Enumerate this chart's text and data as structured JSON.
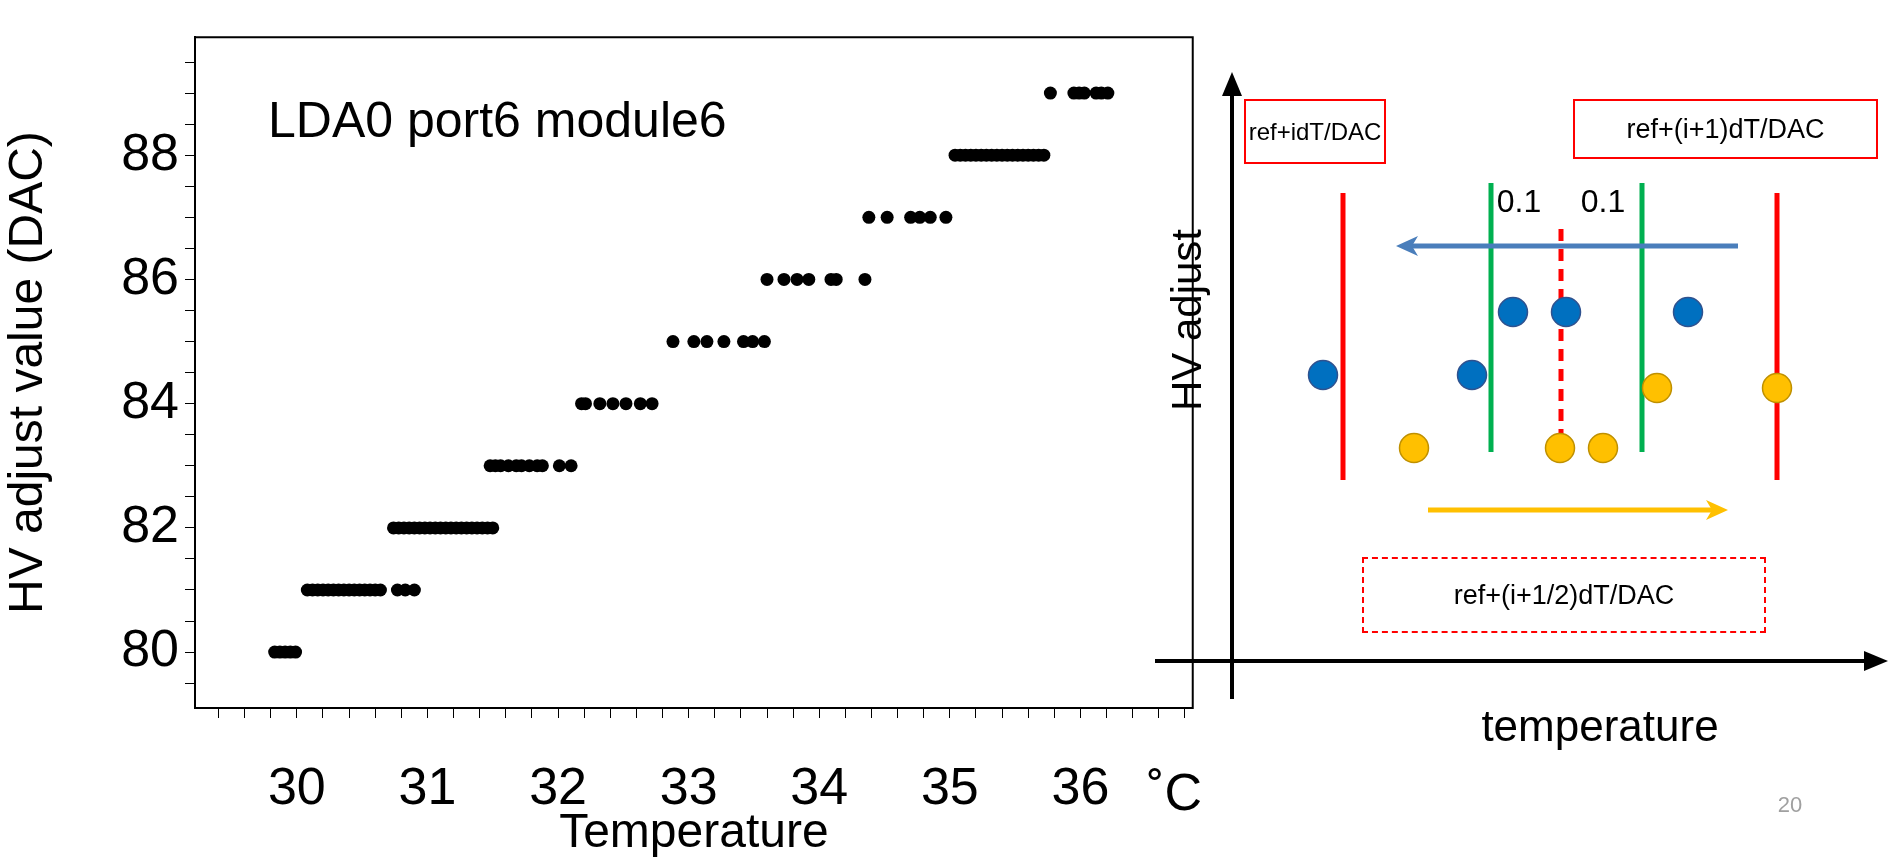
{
  "chart_data": [
    {
      "type": "scatter",
      "title": "LDA0 port6 module6",
      "xlabel": "Temperature",
      "ylabel": "HV adjust value (DAC)",
      "color": "#000000",
      "marker": "circle",
      "annotations": [
        "˚C"
      ],
      "x": [
        29.83,
        29.87,
        29.91,
        29.95,
        29.99,
        30.08,
        30.12,
        30.16,
        30.2,
        30.24,
        30.28,
        30.32,
        30.36,
        30.4,
        30.44,
        30.48,
        30.52,
        30.56,
        30.6,
        30.64,
        30.77,
        30.83,
        30.9,
        30.74,
        30.78,
        30.82,
        30.86,
        30.9,
        30.94,
        30.98,
        31.02,
        31.06,
        31.1,
        31.14,
        31.18,
        31.22,
        31.26,
        31.3,
        31.34,
        31.38,
        31.42,
        31.46,
        31.5,
        31.48,
        31.52,
        31.56,
        31.62,
        31.68,
        31.72,
        31.78,
        31.84,
        31.88,
        32.01,
        32.1,
        32.18,
        32.21,
        32.32,
        32.42,
        32.52,
        32.63,
        32.72,
        32.88,
        33.04,
        33.14,
        33.27,
        33.42,
        33.49,
        33.58,
        33.6,
        33.73,
        33.83,
        33.92,
        34.09,
        34.13,
        34.35,
        34.38,
        34.52,
        34.7,
        34.77,
        34.85,
        34.97,
        35.04,
        35.08,
        35.12,
        35.16,
        35.2,
        35.24,
        35.28,
        35.32,
        35.36,
        35.4,
        35.44,
        35.48,
        35.52,
        35.56,
        35.6,
        35.64,
        35.68,
        35.72,
        35.77,
        35.95,
        35.99,
        36.03,
        36.12,
        36.16,
        36.21
      ],
      "values": [
        80,
        80,
        80,
        80,
        80,
        81,
        81,
        81,
        81,
        81,
        81,
        81,
        81,
        81,
        81,
        81,
        81,
        81,
        81,
        81,
        81,
        81,
        81,
        82,
        82,
        82,
        82,
        82,
        82,
        82,
        82,
        82,
        82,
        82,
        82,
        82,
        82,
        82,
        82,
        82,
        82,
        82,
        82,
        83,
        83,
        83,
        83,
        83,
        83,
        83,
        83,
        83,
        83,
        83,
        84,
        84,
        84,
        84,
        84,
        84,
        84,
        85,
        85,
        85,
        85,
        85,
        85,
        85,
        86,
        86,
        86,
        86,
        86,
        86,
        86,
        87,
        87,
        87,
        87,
        87,
        87,
        88,
        88,
        88,
        88,
        88,
        88,
        88,
        88,
        88,
        88,
        88,
        88,
        88,
        88,
        88,
        88,
        88,
        88,
        89,
        89,
        89,
        89,
        89,
        89,
        89
      ],
      "xlim": [
        29.22,
        36.86
      ],
      "ylim": [
        79.1,
        89.9
      ],
      "xticks": [
        {
          "value": 29.4,
          "label": null
        },
        {
          "value": 29.6,
          "label": null
        },
        {
          "value": 29.8,
          "label": null
        },
        30,
        {
          "value": 30.2,
          "label": null
        },
        {
          "value": 30.4,
          "label": null
        },
        {
          "value": 30.6,
          "label": null
        },
        {
          "value": 30.8,
          "label": null
        },
        31,
        {
          "value": 31.2,
          "label": null
        },
        {
          "value": 31.4,
          "label": null
        },
        {
          "value": 31.6,
          "label": null
        },
        {
          "value": 31.8,
          "label": null
        },
        32,
        {
          "value": 32.2,
          "label": null
        },
        {
          "value": 32.4,
          "label": null
        },
        {
          "value": 32.6,
          "label": null
        },
        {
          "value": 32.8,
          "label": null
        },
        33,
        {
          "value": 33.2,
          "label": null
        },
        {
          "value": 33.4,
          "label": null
        },
        {
          "value": 33.6,
          "label": null
        },
        {
          "value": 33.8,
          "label": null
        },
        34,
        {
          "value": 34.2,
          "label": null
        },
        {
          "value": 34.4,
          "label": null
        },
        {
          "value": 34.6,
          "label": null
        },
        {
          "value": 34.8,
          "label": null
        },
        35,
        {
          "value": 35.2,
          "label": null
        },
        {
          "value": 35.4,
          "label": null
        },
        {
          "value": 35.6,
          "label": null
        },
        {
          "value": 35.8,
          "label": null
        },
        36,
        {
          "value": 36.2,
          "label": null
        },
        {
          "value": 36.4,
          "label": null
        },
        {
          "value": 36.6,
          "label": null
        },
        {
          "value": 36.8,
          "label": null
        }
      ],
      "yticks": [
        {
          "value": 79.5,
          "label": null
        },
        80,
        {
          "value": 80.5,
          "label": null
        },
        {
          "value": 81,
          "label": null
        },
        {
          "value": 81.5,
          "label": null
        },
        82,
        {
          "value": 82.5,
          "label": null
        },
        {
          "value": 83,
          "label": null
        },
        {
          "value": 83.5,
          "label": null
        },
        84,
        {
          "value": 84.5,
          "label": null
        },
        {
          "value": 85,
          "label": null
        },
        {
          "value": 85.5,
          "label": null
        },
        86,
        {
          "value": 86.5,
          "label": null
        },
        {
          "value": 87,
          "label": null
        },
        {
          "value": 87.5,
          "label": null
        },
        88,
        {
          "value": 88.5,
          "label": null
        },
        {
          "value": 89,
          "label": null
        },
        {
          "value": 89.5,
          "label": null
        }
      ]
    },
    {
      "type": "other",
      "xlabel": "temperature",
      "ylabel": "HV adjust",
      "annotations": [
        "ref+idT/DAC",
        "ref+(i+1)dT/DAC",
        "0.1",
        "0.1",
        "ref+(i+1/2)dT/DAC",
        "20"
      ]
    }
  ]
}
